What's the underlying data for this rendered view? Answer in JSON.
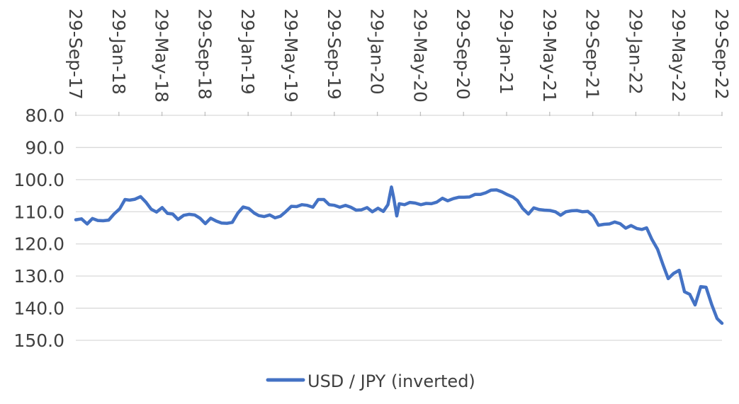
{
  "chart_data": {
    "type": "line",
    "title": "",
    "xlabel": "",
    "ylabel": "",
    "y_axis_inverted": true,
    "ylim": [
      80,
      150
    ],
    "y_ticks": [
      "80.0",
      "90.0",
      "100.0",
      "110.0",
      "120.0",
      "130.0",
      "140.0",
      "150.0"
    ],
    "x_tick_labels": [
      "29-Sep-17",
      "29-Jan-18",
      "29-May-18",
      "29-Sep-18",
      "29-Jan-19",
      "29-May-19",
      "29-Sep-19",
      "29-Jan-20",
      "29-May-20",
      "29-Sep-20",
      "29-Jan-21",
      "29-May-21",
      "29-Sep-21",
      "29-Jan-22",
      "29-May-22",
      "29-Sep-22"
    ],
    "x_range": [
      "2017-09-29",
      "2022-09-29"
    ],
    "grid": "horizontal",
    "legend_position": "bottom",
    "line_color": "#4472C4",
    "series": [
      {
        "name": "USD / JPY (inverted)",
        "x": [
          "2017-09-29",
          "2017-10-15",
          "2017-10-31",
          "2017-11-15",
          "2017-11-30",
          "2017-12-15",
          "2017-12-31",
          "2018-01-15",
          "2018-01-31",
          "2018-02-15",
          "2018-02-28",
          "2018-03-15",
          "2018-03-31",
          "2018-04-15",
          "2018-04-30",
          "2018-05-15",
          "2018-05-31",
          "2018-06-15",
          "2018-06-30",
          "2018-07-15",
          "2018-07-31",
          "2018-08-15",
          "2018-08-31",
          "2018-09-15",
          "2018-09-30",
          "2018-10-15",
          "2018-10-31",
          "2018-11-15",
          "2018-11-30",
          "2018-12-15",
          "2018-12-31",
          "2019-01-15",
          "2019-01-31",
          "2019-02-15",
          "2019-02-28",
          "2019-03-15",
          "2019-03-31",
          "2019-04-15",
          "2019-04-30",
          "2019-05-15",
          "2019-05-31",
          "2019-06-15",
          "2019-06-30",
          "2019-07-15",
          "2019-07-31",
          "2019-08-15",
          "2019-08-31",
          "2019-09-15",
          "2019-09-30",
          "2019-10-15",
          "2019-10-31",
          "2019-11-15",
          "2019-11-30",
          "2019-12-15",
          "2019-12-31",
          "2020-01-15",
          "2020-01-31",
          "2020-02-15",
          "2020-02-28",
          "2020-03-09",
          "2020-03-15",
          "2020-03-24",
          "2020-03-31",
          "2020-04-15",
          "2020-04-30",
          "2020-05-15",
          "2020-05-31",
          "2020-06-15",
          "2020-06-30",
          "2020-07-15",
          "2020-07-31",
          "2020-08-15",
          "2020-08-31",
          "2020-09-15",
          "2020-09-30",
          "2020-10-15",
          "2020-10-31",
          "2020-11-15",
          "2020-11-30",
          "2020-12-15",
          "2020-12-31",
          "2021-01-15",
          "2021-01-31",
          "2021-02-15",
          "2021-02-28",
          "2021-03-15",
          "2021-03-31",
          "2021-04-15",
          "2021-04-30",
          "2021-05-15",
          "2021-05-31",
          "2021-06-15",
          "2021-06-30",
          "2021-07-15",
          "2021-07-31",
          "2021-08-15",
          "2021-08-31",
          "2021-09-15",
          "2021-09-30",
          "2021-10-15",
          "2021-10-31",
          "2021-11-15",
          "2021-11-30",
          "2021-12-15",
          "2021-12-31",
          "2022-01-15",
          "2022-01-31",
          "2022-02-15",
          "2022-02-28",
          "2022-03-15",
          "2022-03-31",
          "2022-04-15",
          "2022-04-30",
          "2022-05-15",
          "2022-05-31",
          "2022-06-15",
          "2022-06-30",
          "2022-07-15",
          "2022-07-31",
          "2022-08-15",
          "2022-08-31",
          "2022-09-15",
          "2022-09-29"
        ],
        "values": [
          112.5,
          112.2,
          113.8,
          112.1,
          112.7,
          112.8,
          112.6,
          110.7,
          109.1,
          106.2,
          106.4,
          106.1,
          105.3,
          107.0,
          109.2,
          110.1,
          108.7,
          110.5,
          110.7,
          112.4,
          111.1,
          110.8,
          111.0,
          112.0,
          113.7,
          112.0,
          112.9,
          113.5,
          113.6,
          113.3,
          110.4,
          108.5,
          109.0,
          110.4,
          111.2,
          111.5,
          111.0,
          111.9,
          111.4,
          110.0,
          108.3,
          108.4,
          107.8,
          108.0,
          108.6,
          106.2,
          106.2,
          107.8,
          108.0,
          108.6,
          108.0,
          108.6,
          109.5,
          109.4,
          108.7,
          110.0,
          108.9,
          109.9,
          107.8,
          102.3,
          105.5,
          111.3,
          107.5,
          107.8,
          107.1,
          107.3,
          107.8,
          107.4,
          107.5,
          107.0,
          105.8,
          106.6,
          105.9,
          105.5,
          105.5,
          105.4,
          104.6,
          104.6,
          104.1,
          103.3,
          103.2,
          103.8,
          104.7,
          105.4,
          106.5,
          109.0,
          110.7,
          108.8,
          109.3,
          109.5,
          109.6,
          110.0,
          111.1,
          110.0,
          109.7,
          109.6,
          110.0,
          109.9,
          111.3,
          114.2,
          113.9,
          113.8,
          113.2,
          113.7,
          115.1,
          114.3,
          115.2,
          115.5,
          115.0,
          118.6,
          121.7,
          126.4,
          130.8,
          129.2,
          128.2,
          134.9,
          135.7,
          139.0,
          133.3,
          133.5,
          138.9,
          143.2,
          144.7
        ]
      }
    ]
  }
}
